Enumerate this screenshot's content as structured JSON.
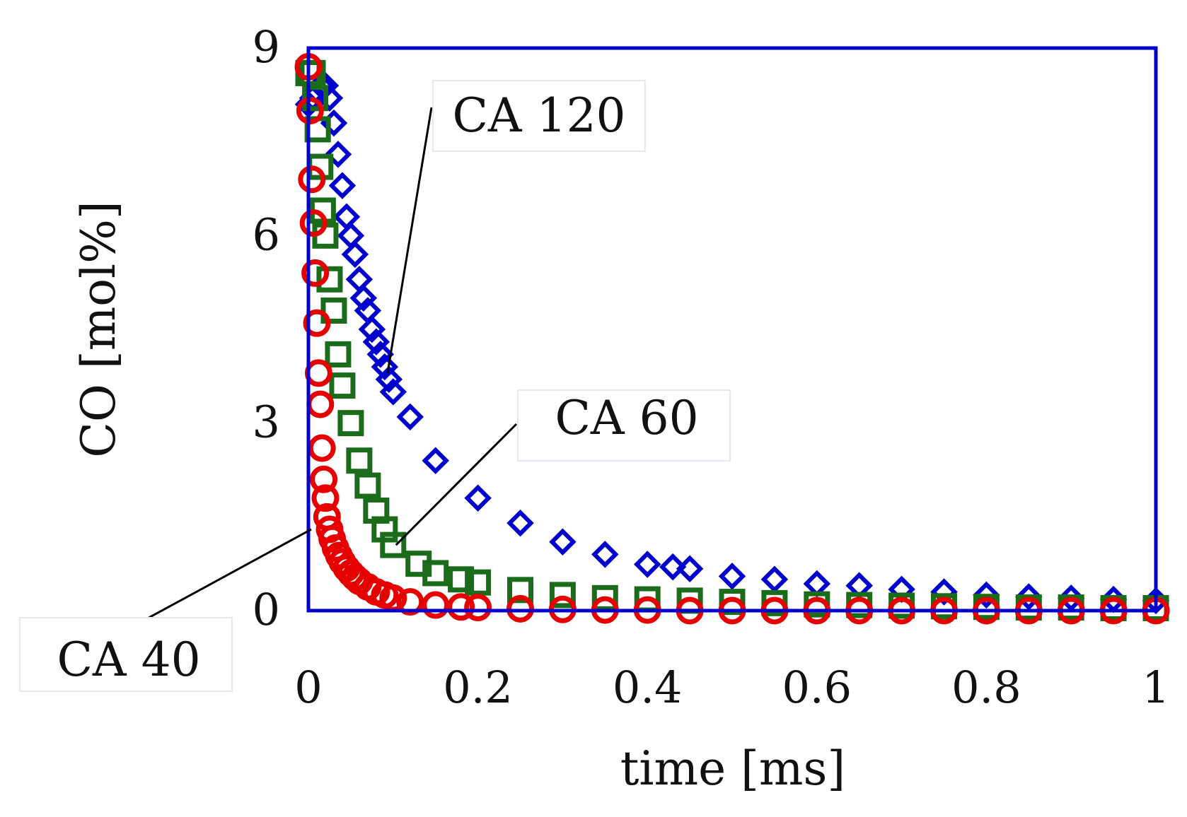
{
  "chart_data": {
    "type": "scatter",
    "title": "",
    "xlabel": "time [ms]",
    "ylabel": "CO [mol%]",
    "xlim": [
      0,
      1
    ],
    "ylim": [
      0,
      9
    ],
    "xticks": [
      0,
      0.2,
      0.4,
      0.6,
      0.8,
      1
    ],
    "xtick_labels": [
      "0",
      "0.2",
      "0.4",
      "0.6",
      "0.8",
      "1"
    ],
    "yticks": [
      0,
      3,
      6,
      9
    ],
    "ytick_labels": [
      "0",
      "3",
      "6",
      "9"
    ],
    "grid": false,
    "legend": "none",
    "frame_color": "#0000cc",
    "series": [
      {
        "name": "CA 120",
        "marker": "diamond",
        "color": "#0000cc",
        "x": [
          0,
          0.005,
          0.01,
          0.015,
          0.02,
          0.025,
          0.03,
          0.035,
          0.04,
          0.045,
          0.05,
          0.055,
          0.06,
          0.065,
          0.07,
          0.075,
          0.08,
          0.085,
          0.09,
          0.095,
          0.1,
          0.12,
          0.15,
          0.2,
          0.25,
          0.3,
          0.35,
          0.4,
          0.43,
          0.45,
          0.5,
          0.55,
          0.6,
          0.65,
          0.7,
          0.75,
          0.8,
          0.85,
          0.9,
          0.95,
          1.0
        ],
        "y": [
          8.1,
          8.2,
          8.3,
          8.4,
          8.4,
          8.2,
          7.8,
          7.3,
          6.8,
          6.3,
          6.0,
          5.7,
          5.3,
          5.0,
          4.8,
          4.5,
          4.3,
          4.1,
          3.9,
          3.7,
          3.5,
          3.1,
          2.4,
          1.8,
          1.4,
          1.1,
          0.9,
          0.74,
          0.7,
          0.67,
          0.55,
          0.5,
          0.43,
          0.4,
          0.34,
          0.3,
          0.25,
          0.22,
          0.2,
          0.18,
          0.16
        ]
      },
      {
        "name": "CA 60",
        "marker": "square",
        "color": "#1a6b1a",
        "x": [
          0,
          0.005,
          0.008,
          0.011,
          0.014,
          0.017,
          0.02,
          0.025,
          0.03,
          0.035,
          0.04,
          0.05,
          0.06,
          0.07,
          0.08,
          0.09,
          0.1,
          0.13,
          0.15,
          0.18,
          0.2,
          0.25,
          0.3,
          0.35,
          0.4,
          0.45,
          0.5,
          0.55,
          0.6,
          0.65,
          0.7,
          0.75,
          0.8,
          0.85,
          0.9,
          0.95,
          1.0
        ],
        "y": [
          8.6,
          8.6,
          8.2,
          7.7,
          7.1,
          6.4,
          6.0,
          5.3,
          4.8,
          4.1,
          3.6,
          3.0,
          2.4,
          2.0,
          1.6,
          1.3,
          1.05,
          0.75,
          0.6,
          0.5,
          0.45,
          0.33,
          0.25,
          0.2,
          0.18,
          0.16,
          0.14,
          0.12,
          0.1,
          0.09,
          0.08,
          0.07,
          0.06,
          0.05,
          0.05,
          0.04,
          0.04
        ]
      },
      {
        "name": "CA 40",
        "marker": "circle",
        "color": "#e60000",
        "x": [
          0,
          0.002,
          0.004,
          0.006,
          0.008,
          0.01,
          0.012,
          0.014,
          0.016,
          0.018,
          0.02,
          0.022,
          0.025,
          0.028,
          0.032,
          0.036,
          0.04,
          0.045,
          0.05,
          0.055,
          0.06,
          0.07,
          0.08,
          0.09,
          0.1,
          0.12,
          0.15,
          0.18,
          0.2,
          0.25,
          0.3,
          0.35,
          0.4,
          0.45,
          0.5,
          0.55,
          0.6,
          0.65,
          0.7,
          0.75,
          0.8,
          0.85,
          0.9,
          0.95,
          1.0
        ],
        "y": [
          8.7,
          8.0,
          6.9,
          6.2,
          5.4,
          4.6,
          3.8,
          3.3,
          2.6,
          2.1,
          1.8,
          1.5,
          1.3,
          1.15,
          1.0,
          0.88,
          0.78,
          0.68,
          0.6,
          0.53,
          0.47,
          0.38,
          0.3,
          0.25,
          0.2,
          0.14,
          0.09,
          0.06,
          0.05,
          0.03,
          0.02,
          0.01,
          0.01,
          0.0,
          0.0,
          0.0,
          0.0,
          0.0,
          0.0,
          0.0,
          0.0,
          0.0,
          0.0,
          0.0,
          0.0
        ]
      }
    ],
    "annotations": [
      {
        "text": "CA 120",
        "series": "CA 120",
        "point": [
          0.09,
          3.8
        ]
      },
      {
        "text": "CA 60",
        "series": "CA 60",
        "point": [
          0.1,
          1.05
        ]
      },
      {
        "text": "CA 40",
        "series": "CA 40",
        "point": [
          0.0,
          1.3
        ]
      }
    ]
  }
}
